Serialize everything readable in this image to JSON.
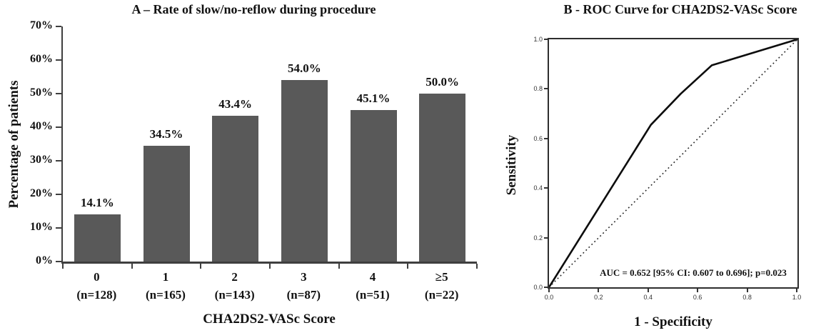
{
  "figure": {
    "background": "#ffffff",
    "axis_color": "#3f3f3f",
    "text_color": "#111111"
  },
  "chart_data": [
    {
      "type": "bar",
      "panel": "A",
      "title": "A – Rate of slow/no-reflow during procedure",
      "xlabel": "CHA2DS2-VASc Score",
      "ylabel": "Percentage of patients",
      "categories": [
        "0",
        "1",
        "2",
        "3",
        "4",
        "≥5"
      ],
      "category_counts": [
        "(n=128)",
        "(n=165)",
        "(n=143)",
        "(n=87)",
        "(n=51)",
        "(n=22)"
      ],
      "values": [
        14.1,
        34.5,
        43.4,
        54.0,
        45.1,
        50.0
      ],
      "value_labels": [
        "14.1%",
        "34.5%",
        "43.4%",
        "54.0%",
        "45.1%",
        "50.0%"
      ],
      "ylim": [
        0,
        70
      ],
      "ytick_step": 10,
      "ytick_labels": [
        "0%",
        "10%",
        "20%",
        "30%",
        "40%",
        "50%",
        "60%",
        "70%"
      ],
      "grid": false,
      "legend": "none",
      "bar_color": "#595959"
    },
    {
      "type": "line",
      "panel": "B",
      "title": "B - ROC Curve for CHA2DS2-VASc Score",
      "xlabel": "1 - Specificity",
      "ylabel": "Sensitivity",
      "xlim": [
        0,
        1
      ],
      "ylim": [
        0,
        1
      ],
      "xticks": [
        "0.0",
        "0.2",
        "0.4",
        "0.6",
        "0.8",
        "1.0"
      ],
      "yticks": [
        "0.0",
        "0.2",
        "0.4",
        "0.6",
        "0.8",
        "1.0"
      ],
      "annotation": "AUC = 0.652 [95% CI: 0.607 to 0.696]; p=0.023",
      "grid": false,
      "legend": "none",
      "series": [
        {
          "name": "ROC curve",
          "style": "solid",
          "x": [
            0,
            0.41,
            0.53,
            0.655,
            1.0
          ],
          "y": [
            0,
            0.655,
            0.78,
            0.895,
            1.0
          ]
        },
        {
          "name": "reference diagonal",
          "style": "dotted",
          "x": [
            0,
            1
          ],
          "y": [
            0,
            1
          ]
        }
      ]
    }
  ]
}
